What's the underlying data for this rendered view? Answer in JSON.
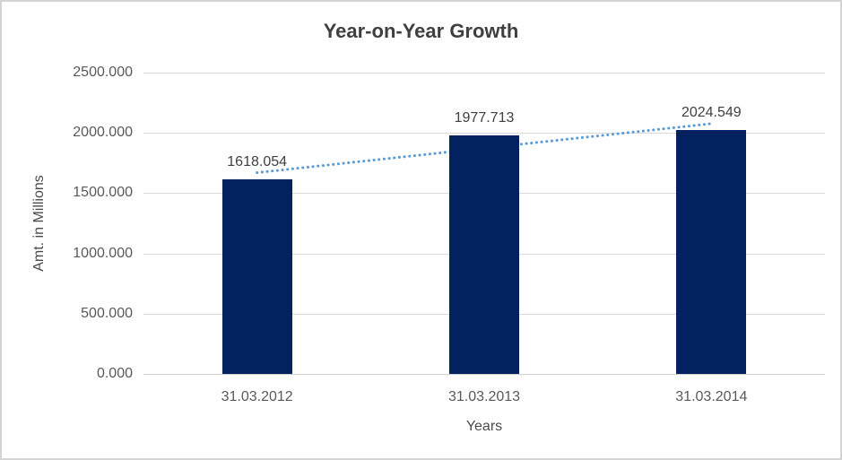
{
  "chart_data": {
    "type": "bar",
    "title": "Year-on-Year Growth",
    "xlabel": "Years",
    "ylabel": "Amt. in Millions",
    "categories": [
      "31.03.2012",
      "31.03.2013",
      "31.03.2014"
    ],
    "series": [
      {
        "name": "Amt. in Millions",
        "values": [
          1618.054,
          1977.713,
          2024.549
        ],
        "value_labels": [
          "1618.054",
          "1977.713",
          "2024.549"
        ]
      }
    ],
    "ylim": [
      0,
      2500
    ],
    "ytick_step": 500,
    "ytick_labels": [
      "0.000",
      "500.000",
      "1000.000",
      "1500.000",
      "2000.000",
      "2500.000"
    ],
    "grid": true,
    "legend": false,
    "trendline": {
      "type": "linear",
      "style": "dotted",
      "color": "#5b9bd5"
    },
    "colors": {
      "bar": "#02215e",
      "trendline": "#5b9bd5",
      "gridline": "#d9d9d9",
      "title_text": "#3f3f3f",
      "tick_text": "#595959",
      "label_text": "#404040",
      "border": "#d4d4d4"
    }
  }
}
